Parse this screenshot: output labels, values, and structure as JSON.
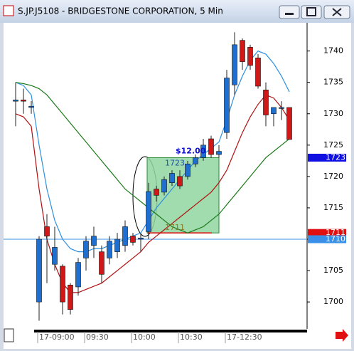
{
  "chart_data": {
    "type": "candlestick",
    "title": "S.JP.J5108 - BRIDGESTONE CORPORATION, 5 Min",
    "categories": [
      null,
      null,
      null,
      "17-09:00",
      null,
      null,
      null,
      null,
      null,
      "09:30",
      null,
      null,
      null,
      null,
      null,
      "10:00",
      null,
      null,
      null,
      null,
      null,
      "10:30",
      null,
      null,
      null,
      null,
      null,
      "17-12:30",
      null,
      null,
      null,
      null,
      null,
      null,
      null,
      null
    ],
    "open": [
      1732,
      1732.2,
      1731,
      1700,
      1712,
      1706,
      1705.7,
      1702.7,
      1702.4,
      1707,
      1709,
      1708,
      1707,
      1708,
      1709,
      1710.5,
      1710,
      1711.2,
      1718,
      1717.5,
      1719,
      1720,
      1720,
      1722,
      1723,
      1726,
      1723.5,
      1727,
      1734.6,
      1741.7,
      1740.6,
      1738.9,
      1733.8,
      1730,
      1731,
      1731
    ],
    "high": [
      1735,
      1734,
      1732,
      1710.5,
      1714,
      1712,
      1706,
      1703,
      1707,
      1710.5,
      1712,
      1709,
      1710.5,
      1711,
      1713,
      1711,
      1711,
      1719,
      1718.5,
      1720,
      1721,
      1721,
      1722.5,
      1723.5,
      1726,
      1726.5,
      1725,
      1737,
      1743,
      1742,
      1741,
      1739.5,
      1735,
      1731,
      1732,
      1731
    ],
    "low": [
      1728,
      1730,
      1730,
      1697,
      1703,
      1705,
      1698,
      1698,
      1701,
      1705,
      1707,
      1703,
      1706,
      1707,
      1708,
      1709,
      1708,
      1710,
      1716,
      1717,
      1718.5,
      1718,
      1719.5,
      1721.5,
      1722.5,
      1723,
      1723,
      1726,
      1733,
      1737,
      1737,
      1734,
      1728,
      1728,
      1729,
      1725.9
    ],
    "close": [
      1732.2,
      1732,
      1731.2,
      1710,
      1710.5,
      1708.7,
      1700,
      1698.8,
      1706.3,
      1709.7,
      1710.5,
      1704.4,
      1709.7,
      1710,
      1712,
      1709.5,
      1710.2,
      1717.6,
      1717,
      1719.5,
      1720.5,
      1718.5,
      1722,
      1723,
      1725,
      1723.5,
      1724,
      1735.7,
      1741,
      1738.3,
      1737.7,
      1734.4,
      1729.8,
      1731,
      1731,
      1725.9
    ],
    "up_color": "#1f6fd0",
    "down_color": "#d01818",
    "series": [
      {
        "color": "#2d8fe0",
        "values": [
          1735,
          1734.5,
          1733,
          1725,
          1718,
          1713,
          1710,
          1708.5,
          1708,
          1708,
          1708.5,
          1708.5,
          1709,
          1709.5,
          1710,
          1710.5,
          1711,
          1713,
          1715,
          1716.5,
          1718,
          1719.5,
          1721,
          1722.5,
          1723.5,
          1724.5,
          1725.5,
          1729,
          1733,
          1736,
          1738.5,
          1740,
          1739.5,
          1738,
          1736,
          1733.5
        ]
      },
      {
        "color": "#b01010",
        "values": [
          1730,
          1729.5,
          1728,
          1718,
          1710,
          1706,
          1703,
          1701.5,
          1701.5,
          1702,
          1702.5,
          1703,
          1704,
          1705,
          1706,
          1707,
          1708,
          1709.5,
          1710.5,
          1711.5,
          1712.5,
          1713.5,
          1714.5,
          1715.5,
          1716.5,
          1717.5,
          1719,
          1721,
          1724,
          1727,
          1729.5,
          1731.5,
          1733,
          1732.5,
          1731,
          1729
        ]
      },
      {
        "color": "#1a7a1a",
        "values": [
          1735,
          1734.8,
          1734.5,
          1734,
          1733,
          1731.5,
          1730,
          1728.5,
          1727,
          1725.5,
          1724,
          1722.5,
          1721,
          1719.5,
          1718,
          1717,
          1716,
          1715,
          1714,
          1713,
          1712,
          1711.5,
          1711,
          1711.5,
          1712,
          1713,
          1714,
          1715.5,
          1717,
          1718.5,
          1720,
          1721.5,
          1723,
          1724,
          1725,
          1726
        ]
      }
    ],
    "ylim": [
      1695.7,
      1744.5
    ],
    "yticks": [
      1700,
      1705,
      1710,
      1715,
      1720,
      1725,
      1730,
      1735,
      1740
    ],
    "box": {
      "high": 1723,
      "low": 1711,
      "gain_label": "$12.00",
      "color": "#8fd69f"
    },
    "price_line": 1710,
    "markers": [
      {
        "value": 1723,
        "color": "#1010e0"
      },
      {
        "value": 1711,
        "color": "#e01010"
      },
      {
        "value": 1710,
        "color": "#3a90e8"
      }
    ]
  }
}
